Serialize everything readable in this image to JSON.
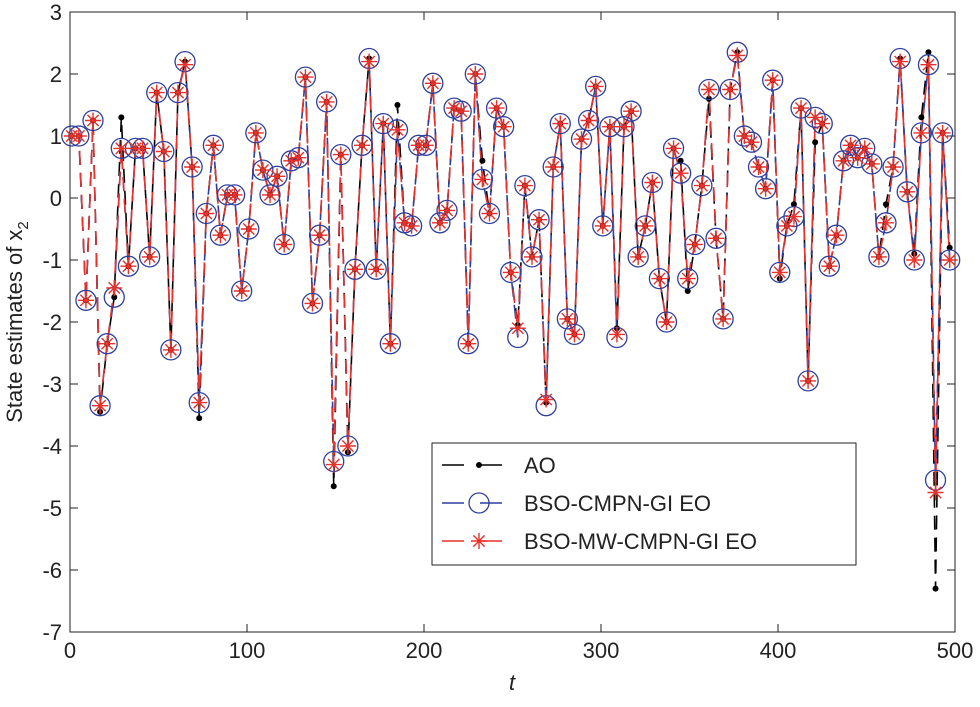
{
  "chart_data": {
    "type": "line",
    "xlabel": "t",
    "ylabel": "State estimates of x",
    "ylabel_subscript": "2",
    "xlim": [
      0,
      500
    ],
    "xticks": [
      0,
      100,
      200,
      300,
      400,
      500
    ],
    "ylim": [
      -7,
      3
    ],
    "yticks": [
      -7,
      -6,
      -5,
      -4,
      -3,
      -2,
      -1,
      0,
      1,
      2,
      3
    ],
    "legend": "lower-center",
    "x": [
      1,
      5,
      9,
      13,
      17,
      21,
      25,
      29,
      33,
      37,
      41,
      45,
      49,
      53,
      57,
      61,
      65,
      69,
      73,
      77,
      81,
      85,
      89,
      93,
      97,
      101,
      105,
      109,
      113,
      117,
      121,
      125,
      129,
      133,
      137,
      141,
      145,
      149,
      153,
      157,
      161,
      165,
      169,
      173,
      177,
      181,
      185,
      189,
      193,
      197,
      201,
      205,
      209,
      213,
      217,
      221,
      225,
      229,
      233,
      237,
      241,
      245,
      249,
      253,
      257,
      261,
      265,
      269,
      273,
      277,
      281,
      285,
      289,
      293,
      297,
      301,
      305,
      309,
      313,
      317,
      321,
      325,
      329,
      333,
      337,
      341,
      345,
      349,
      353,
      357,
      361,
      365,
      369,
      373,
      377,
      381,
      385,
      389,
      393,
      397,
      401,
      405,
      409,
      413,
      417,
      421,
      425,
      429,
      433,
      437,
      441,
      445,
      449,
      453,
      457,
      461,
      465,
      469,
      473,
      477,
      481,
      485,
      489,
      493,
      497
    ],
    "series": [
      {
        "name": "AO",
        "color": "#000000",
        "marker": "dot",
        "values": [
          1.0,
          1.0,
          -1.65,
          1.25,
          -3.45,
          -2.35,
          -1.6,
          1.3,
          -1.1,
          0.8,
          0.8,
          -0.95,
          1.7,
          0.75,
          -2.45,
          1.7,
          2.2,
          0.5,
          -3.55,
          -0.25,
          0.85,
          -0.6,
          0.05,
          0.05,
          -1.5,
          -0.5,
          1.05,
          0.45,
          0.05,
          0.35,
          -0.75,
          0.6,
          0.65,
          1.95,
          -1.7,
          -0.6,
          1.55,
          -4.65,
          0.7,
          -4.1,
          -1.15,
          0.85,
          2.25,
          -1.15,
          1.2,
          -2.35,
          1.5,
          -0.4,
          -0.45,
          0.85,
          0.85,
          1.85,
          -0.4,
          -0.2,
          1.45,
          1.4,
          -2.35,
          2.0,
          0.6,
          -0.25,
          1.45,
          1.15,
          -1.2,
          -2.05,
          0.2,
          -0.95,
          -0.35,
          -3.3,
          0.5,
          1.2,
          -1.95,
          -2.2,
          0.95,
          1.25,
          1.8,
          -0.45,
          1.15,
          -2.1,
          1.15,
          1.4,
          -0.95,
          -0.45,
          0.25,
          -1.3,
          -2.0,
          0.8,
          0.6,
          -1.5,
          -0.75,
          0.2,
          1.6,
          -0.65,
          -1.95,
          1.75,
          2.35,
          1.0,
          0.9,
          0.5,
          0.15,
          1.9,
          -1.3,
          -0.45,
          -0.1,
          1.45,
          -2.95,
          0.9,
          1.2,
          -1.1,
          -0.6,
          0.6,
          0.85,
          0.65,
          0.8,
          0.55,
          -0.95,
          -0.1,
          0.5,
          2.25,
          0.1,
          -0.9,
          1.3,
          2.35,
          -6.3,
          1.05,
          -0.8
        ]
      },
      {
        "name": "BSO-CMPN-GI EO",
        "color": "#2e3f9e",
        "marker": "circle",
        "values": [
          1.0,
          1.0,
          -1.65,
          1.25,
          -3.35,
          -2.35,
          -1.6,
          0.8,
          -1.1,
          0.8,
          0.8,
          -0.95,
          1.7,
          0.75,
          -2.45,
          1.7,
          2.2,
          0.5,
          -3.3,
          -0.25,
          0.85,
          -0.6,
          0.05,
          0.05,
          -1.5,
          -0.5,
          1.05,
          0.45,
          0.05,
          0.35,
          -0.75,
          0.6,
          0.65,
          1.95,
          -1.7,
          -0.6,
          1.55,
          -4.25,
          0.7,
          -4.0,
          -1.15,
          0.85,
          2.25,
          -1.15,
          1.2,
          -2.35,
          1.1,
          -0.4,
          -0.45,
          0.85,
          0.85,
          1.85,
          -0.4,
          -0.2,
          1.45,
          1.4,
          -2.35,
          2.0,
          0.3,
          -0.25,
          1.45,
          1.15,
          -1.2,
          -2.25,
          0.2,
          -0.95,
          -0.35,
          -3.35,
          0.5,
          1.2,
          -1.95,
          -2.2,
          0.95,
          1.25,
          1.8,
          -0.45,
          1.15,
          -2.25,
          1.15,
          1.4,
          -0.95,
          -0.45,
          0.25,
          -1.3,
          -2.0,
          0.8,
          0.4,
          -1.3,
          -0.75,
          0.2,
          1.75,
          -0.65,
          -1.95,
          1.75,
          2.35,
          1.0,
          0.9,
          0.5,
          0.15,
          1.9,
          -1.2,
          -0.45,
          -0.3,
          1.45,
          -2.95,
          1.3,
          1.2,
          -1.1,
          -0.6,
          0.6,
          0.85,
          0.65,
          0.8,
          0.55,
          -0.95,
          -0.4,
          0.5,
          2.25,
          0.1,
          -1.0,
          1.05,
          2.15,
          -4.55,
          1.05,
          -1.0
        ]
      },
      {
        "name": "BSO-MW-CMPN-GI EO",
        "color": "#e8312a",
        "marker": "asterisk",
        "values": [
          1.0,
          1.0,
          -1.65,
          1.25,
          -3.35,
          -2.35,
          -1.45,
          0.8,
          -1.1,
          0.8,
          0.8,
          -0.95,
          1.7,
          0.75,
          -2.45,
          1.7,
          2.15,
          0.5,
          -3.3,
          -0.25,
          0.85,
          -0.6,
          0.05,
          0.05,
          -1.5,
          -0.5,
          1.05,
          0.45,
          0.05,
          0.35,
          -0.75,
          0.6,
          0.65,
          1.95,
          -1.7,
          -0.6,
          1.55,
          -4.3,
          0.7,
          -4.0,
          -1.15,
          0.85,
          2.2,
          -1.15,
          1.2,
          -2.35,
          1.1,
          -0.4,
          -0.45,
          0.85,
          0.85,
          1.85,
          -0.4,
          -0.2,
          1.45,
          1.4,
          -2.35,
          2.0,
          0.3,
          -0.25,
          1.45,
          1.15,
          -1.2,
          -2.1,
          0.2,
          -0.95,
          -0.35,
          -3.25,
          0.5,
          1.2,
          -1.95,
          -2.2,
          0.95,
          1.25,
          1.8,
          -0.45,
          1.15,
          -2.2,
          1.15,
          1.4,
          -0.95,
          -0.45,
          0.25,
          -1.3,
          -2.0,
          0.8,
          0.4,
          -1.3,
          -0.75,
          0.2,
          1.75,
          -0.65,
          -1.95,
          1.75,
          2.3,
          1.0,
          0.9,
          0.5,
          0.15,
          1.9,
          -1.2,
          -0.45,
          -0.3,
          1.45,
          -2.95,
          1.3,
          1.2,
          -1.1,
          -0.6,
          0.6,
          0.85,
          0.65,
          0.8,
          0.55,
          -0.95,
          -0.4,
          0.5,
          2.2,
          0.1,
          -1.0,
          1.05,
          2.15,
          -4.75,
          1.05,
          -1.0
        ]
      }
    ]
  }
}
